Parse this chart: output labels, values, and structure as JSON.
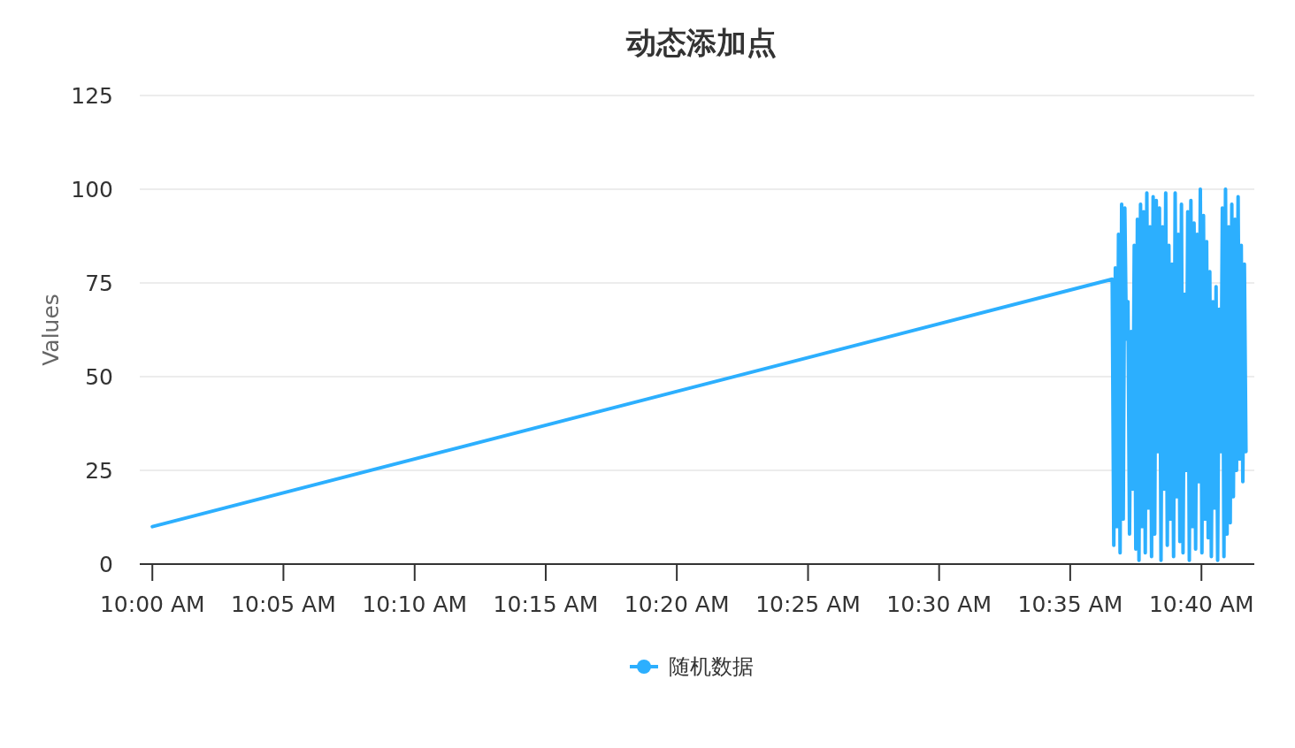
{
  "chart_data": {
    "type": "line",
    "title": "动态添加点",
    "ylabel": "Values",
    "xlim": [
      9.992,
      10.7003
    ],
    "ylim": [
      0,
      125
    ],
    "yticks": [
      0,
      25,
      50,
      75,
      100,
      125
    ],
    "xticks": [
      {
        "value": 10,
        "label": "10:00 AM"
      },
      {
        "value": 10.0833,
        "label": "10:05 AM"
      },
      {
        "value": 10.1667,
        "label": "10:10 AM"
      },
      {
        "value": 10.25,
        "label": "10:15 AM"
      },
      {
        "value": 10.3333,
        "label": "10:20 AM"
      },
      {
        "value": 10.4167,
        "label": "10:25 AM"
      },
      {
        "value": 10.5,
        "label": "10:30 AM"
      },
      {
        "value": 10.5833,
        "label": "10:35 AM"
      },
      {
        "value": 10.6667,
        "label": "10:40 AM"
      }
    ],
    "grid": "y",
    "legend": "bottom",
    "series": [
      {
        "name": "随机数据",
        "color": "#2caffe",
        "x": [
          10.0,
          10.61,
          10.611,
          10.612,
          10.613,
          10.614,
          10.615,
          10.616,
          10.617,
          10.618,
          10.619,
          10.62,
          10.621,
          10.622,
          10.623,
          10.624,
          10.625,
          10.626,
          10.627,
          10.628,
          10.629,
          10.63,
          10.631,
          10.632,
          10.633,
          10.634,
          10.635,
          10.636,
          10.637,
          10.638,
          10.639,
          10.64,
          10.641,
          10.642,
          10.643,
          10.644,
          10.645,
          10.646,
          10.647,
          10.648,
          10.649,
          10.65,
          10.651,
          10.652,
          10.653,
          10.654,
          10.655,
          10.656,
          10.657,
          10.658,
          10.659,
          10.66,
          10.661,
          10.662,
          10.663,
          10.664,
          10.665,
          10.666,
          10.667,
          10.668,
          10.669,
          10.67,
          10.671,
          10.672,
          10.673,
          10.674,
          10.675,
          10.676,
          10.677,
          10.678,
          10.679,
          10.68,
          10.681,
          10.682,
          10.683,
          10.684,
          10.685,
          10.686,
          10.687,
          10.688,
          10.689,
          10.69,
          10.691,
          10.692,
          10.693,
          10.694,
          10.695
        ],
        "values": [
          10,
          76,
          5,
          79,
          10,
          88,
          3,
          96,
          12,
          95,
          60,
          70,
          8,
          62,
          20,
          85,
          4,
          92,
          1,
          96,
          10,
          94,
          3,
          99,
          15,
          90,
          2,
          98,
          8,
          97,
          30,
          95,
          1,
          90,
          20,
          99,
          5,
          85,
          12,
          80,
          2,
          99,
          18,
          88,
          6,
          96,
          3,
          72,
          25,
          94,
          1,
          97,
          10,
          91,
          4,
          88,
          22,
          100,
          3,
          93,
          12,
          86,
          7,
          78,
          2,
          70,
          15,
          74,
          1,
          68,
          30,
          95,
          2,
          100,
          8,
          90,
          11,
          96,
          18,
          92,
          25,
          98,
          28,
          85,
          22,
          80,
          30
        ]
      }
    ]
  }
}
